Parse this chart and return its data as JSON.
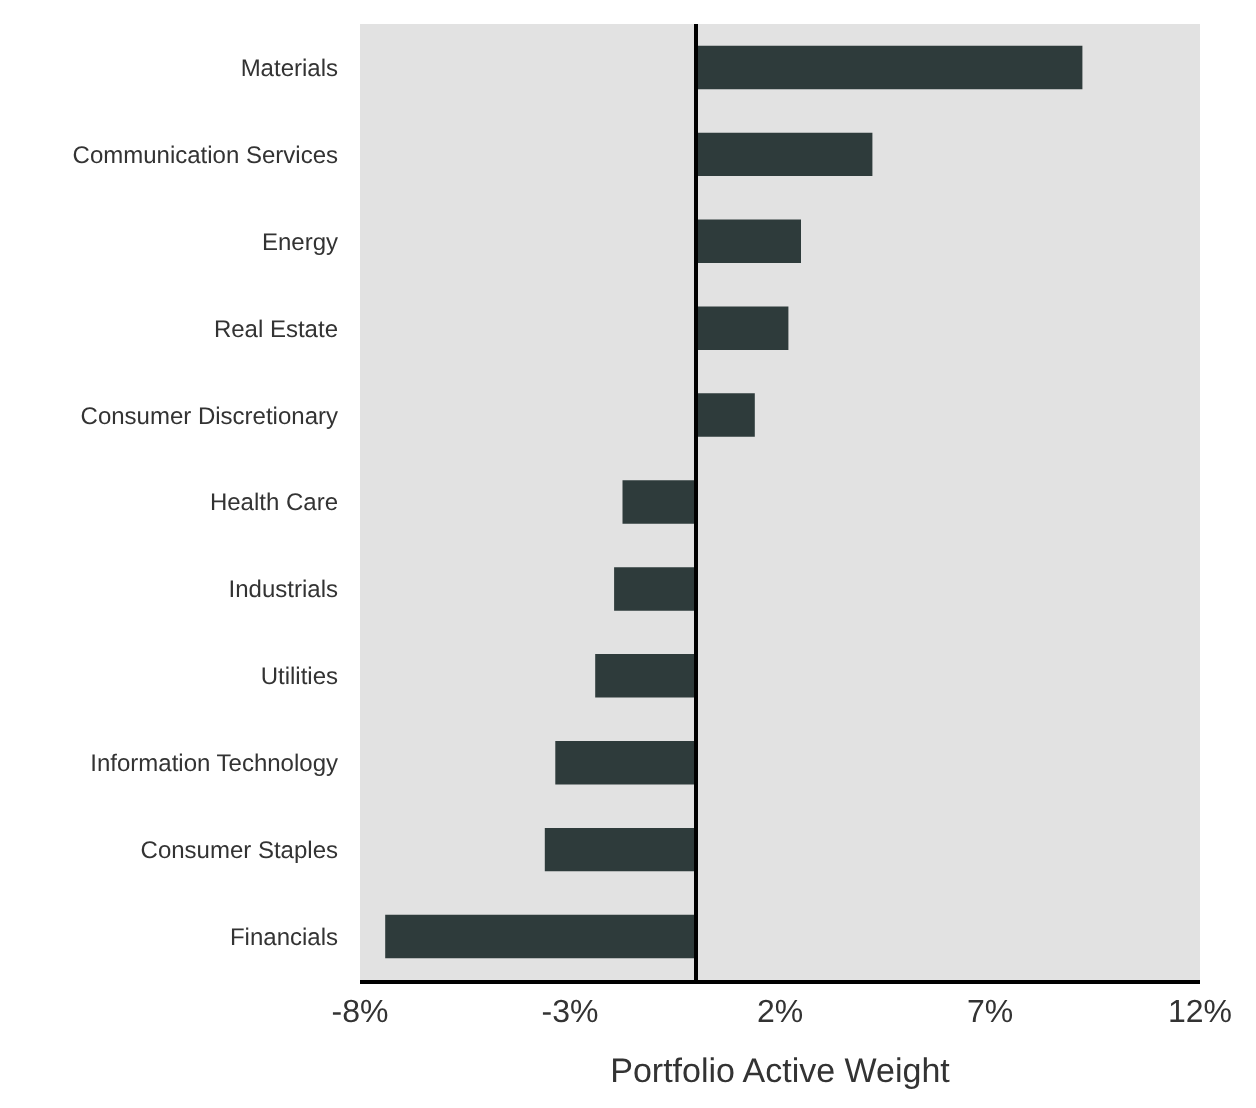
{
  "chart_data": {
    "type": "bar",
    "orientation": "horizontal",
    "xlabel": "Portfolio Active Weight",
    "categories": [
      "Materials",
      "Communication Services",
      "Energy",
      "Real Estate",
      "Consumer Discretionary",
      "Health Care",
      "Industrials",
      "Utilities",
      "Information Technology",
      "Consumer Staples",
      "Financials"
    ],
    "values": [
      9.2,
      4.2,
      2.5,
      2.2,
      1.4,
      -1.75,
      -1.95,
      -2.4,
      -3.35,
      -3.6,
      -7.4
    ],
    "color": "#2e3b3b",
    "xlim": [
      -8,
      12
    ],
    "xticks": [
      {
        "value": -8,
        "label": "-8%"
      },
      {
        "value": -3,
        "label": "-3%"
      },
      {
        "value": 2,
        "label": "2%"
      },
      {
        "value": 7,
        "label": "7%"
      },
      {
        "value": 12,
        "label": "12%"
      }
    ],
    "ref_lines": [
      {
        "axis": "x",
        "value": 0,
        "color": "#000000"
      }
    ],
    "grid": false
  }
}
